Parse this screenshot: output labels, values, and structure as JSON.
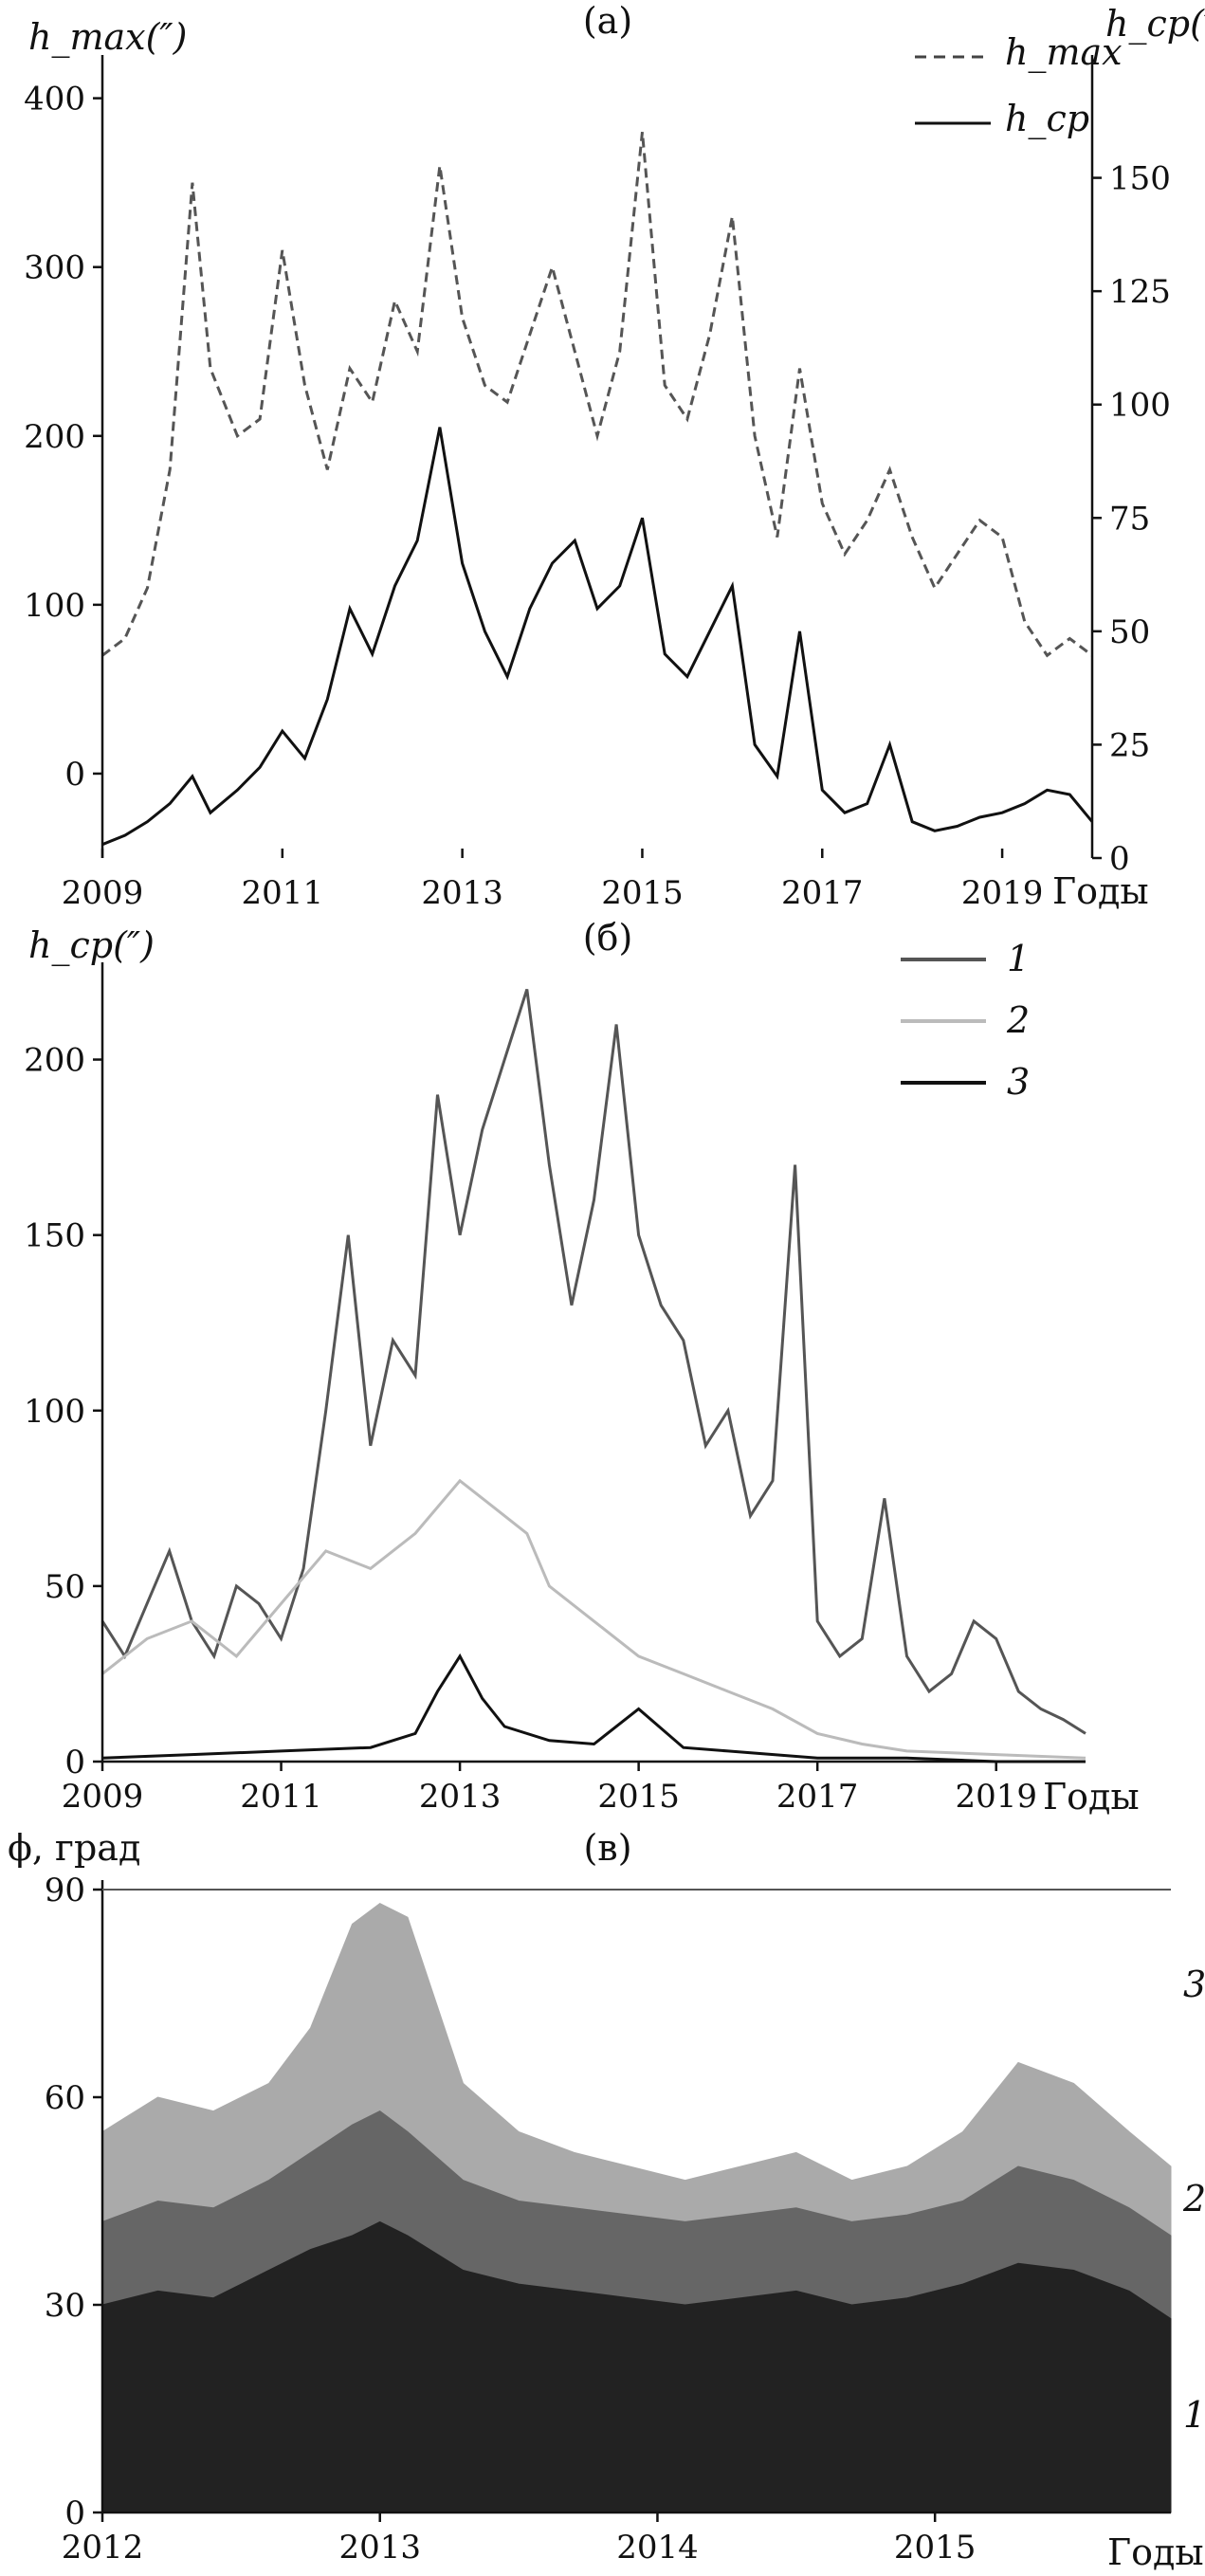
{
  "figure": {
    "panels": [
      {
        "id": "a",
        "label": "(a)",
        "chart_data": {
          "type": "line",
          "ylabel_left": "h_max(″)",
          "ylabel_right": "h_cp(″)",
          "xlabel": "Годы",
          "x_ticks": [
            "2009",
            "2011",
            "2013",
            "2015",
            "2017",
            "2019"
          ],
          "xlim": [
            2009,
            2020
          ],
          "y_left_ticks": [
            "0",
            "100",
            "200",
            "300",
            "400"
          ],
          "y_left_lim": [
            -50,
            420
          ],
          "y_right_ticks": [
            "0",
            "25",
            "50",
            "75",
            "100",
            "125",
            "150"
          ],
          "y_right_lim": [
            0,
            175
          ],
          "legend": [
            {
              "name": "h_max",
              "style": "dashed"
            },
            {
              "name": "h_cp",
              "style": "solid"
            }
          ],
          "legend_position": "top-right",
          "series": [
            {
              "name": "h_max",
              "axis": "left",
              "color": "#555555",
              "x": [
                2009.0,
                2009.25,
                2009.5,
                2009.75,
                2010.0,
                2010.2,
                2010.5,
                2010.75,
                2011.0,
                2011.25,
                2011.5,
                2011.75,
                2012.0,
                2012.25,
                2012.5,
                2012.75,
                2013.0,
                2013.25,
                2013.5,
                2013.75,
                2014.0,
                2014.25,
                2014.5,
                2014.75,
                2015.0,
                2015.25,
                2015.5,
                2015.75,
                2016.0,
                2016.25,
                2016.5,
                2016.75,
                2017.0,
                2017.25,
                2017.5,
                2017.75,
                2018.0,
                2018.25,
                2018.5,
                2018.75,
                2019.0,
                2019.25,
                2019.5,
                2019.75,
                2020.0
              ],
              "y": [
                70,
                80,
                110,
                180,
                350,
                240,
                200,
                210,
                310,
                230,
                180,
                240,
                220,
                280,
                250,
                360,
                270,
                230,
                220,
                260,
                300,
                250,
                200,
                250,
                380,
                230,
                210,
                260,
                330,
                200,
                140,
                240,
                160,
                130,
                150,
                180,
                140,
                110,
                130,
                150,
                140,
                90,
                70,
                80,
                70
              ]
            },
            {
              "name": "h_cp",
              "axis": "right",
              "color": "#111111",
              "x": [
                2009.0,
                2009.25,
                2009.5,
                2009.75,
                2010.0,
                2010.2,
                2010.5,
                2010.75,
                2011.0,
                2011.25,
                2011.5,
                2011.75,
                2012.0,
                2012.25,
                2012.5,
                2012.75,
                2013.0,
                2013.25,
                2013.5,
                2013.75,
                2014.0,
                2014.25,
                2014.5,
                2014.75,
                2015.0,
                2015.25,
                2015.5,
                2015.75,
                2016.0,
                2016.25,
                2016.5,
                2016.75,
                2017.0,
                2017.25,
                2017.5,
                2017.75,
                2018.0,
                2018.25,
                2018.5,
                2018.75,
                2019.0,
                2019.25,
                2019.5,
                2019.75,
                2020.0
              ],
              "y": [
                3,
                5,
                8,
                12,
                18,
                10,
                15,
                20,
                28,
                22,
                35,
                55,
                45,
                60,
                70,
                95,
                65,
                50,
                40,
                55,
                65,
                70,
                55,
                60,
                75,
                45,
                40,
                50,
                60,
                25,
                18,
                50,
                15,
                10,
                12,
                25,
                8,
                6,
                7,
                9,
                10,
                12,
                15,
                14,
                8
              ]
            }
          ]
        }
      },
      {
        "id": "b",
        "label": "(б)",
        "chart_data": {
          "type": "line",
          "ylabel": "h_cp(″)",
          "xlabel": "Годы",
          "x_ticks": [
            "2009",
            "2011",
            "2013",
            "2015",
            "2017",
            "2019"
          ],
          "xlim": [
            2009,
            2020
          ],
          "y_ticks": [
            "0",
            "50",
            "100",
            "150",
            "200"
          ],
          "ylim": [
            0,
            225
          ],
          "legend": [
            {
              "name": "1",
              "color": "#555555"
            },
            {
              "name": "2",
              "color": "#bbbbbb"
            },
            {
              "name": "3",
              "color": "#111111"
            }
          ],
          "legend_position": "top-right",
          "series": [
            {
              "name": "1",
              "color": "#555555",
              "x": [
                2009.0,
                2009.25,
                2009.5,
                2009.75,
                2010.0,
                2010.25,
                2010.5,
                2010.75,
                2011.0,
                2011.25,
                2011.5,
                2011.75,
                2012.0,
                2012.25,
                2012.5,
                2012.75,
                2013.0,
                2013.25,
                2013.5,
                2013.75,
                2014.0,
                2014.25,
                2014.5,
                2014.75,
                2015.0,
                2015.25,
                2015.5,
                2015.75,
                2016.0,
                2016.25,
                2016.5,
                2016.75,
                2017.0,
                2017.25,
                2017.5,
                2017.75,
                2018.0,
                2018.25,
                2018.5,
                2018.75,
                2019.0,
                2019.25,
                2019.5,
                2019.75,
                2020.0
              ],
              "y": [
                40,
                30,
                45,
                60,
                40,
                30,
                50,
                45,
                35,
                55,
                100,
                150,
                90,
                120,
                110,
                190,
                150,
                180,
                200,
                220,
                170,
                130,
                160,
                210,
                150,
                130,
                120,
                90,
                100,
                70,
                80,
                170,
                40,
                30,
                35,
                75,
                30,
                20,
                25,
                40,
                35,
                20,
                15,
                12,
                8
              ]
            },
            {
              "name": "2",
              "color": "#bbbbbb",
              "x": [
                2009.0,
                2009.5,
                2010.0,
                2010.5,
                2011.0,
                2011.5,
                2012.0,
                2012.5,
                2013.0,
                2013.25,
                2013.5,
                2013.75,
                2014.0,
                2014.5,
                2015.0,
                2015.5,
                2016.0,
                2016.5,
                2017.0,
                2017.5,
                2018.0,
                2019.0,
                2020.0
              ],
              "y": [
                25,
                35,
                40,
                30,
                45,
                60,
                55,
                65,
                80,
                75,
                70,
                65,
                50,
                40,
                30,
                25,
                20,
                15,
                8,
                5,
                3,
                2,
                1
              ]
            },
            {
              "name": "3",
              "color": "#111111",
              "x": [
                2009.0,
                2010.0,
                2011.0,
                2012.0,
                2012.5,
                2012.75,
                2013.0,
                2013.25,
                2013.5,
                2014.0,
                2014.5,
                2015.0,
                2015.5,
                2016.0,
                2017.0,
                2018.0,
                2019.0,
                2020.0
              ],
              "y": [
                1,
                2,
                3,
                4,
                8,
                20,
                30,
                18,
                10,
                6,
                5,
                15,
                4,
                3,
                1,
                1,
                0,
                0
              ]
            }
          ]
        }
      },
      {
        "id": "c",
        "label": "(в)",
        "chart_data": {
          "type": "area",
          "ylabel": "ϕ, град",
          "xlabel": "Годы",
          "x_ticks": [
            "2012",
            "2013",
            "2014",
            "2015"
          ],
          "xlim": [
            2012,
            2015.85
          ],
          "y_ticks": [
            "0",
            "30",
            "60",
            "90"
          ],
          "ylim": [
            0,
            90
          ],
          "band_labels": [
            "1",
            "2",
            "3"
          ],
          "series": [
            {
              "name": "3",
              "color": "#aaaaaa",
              "x": [
                2012.0,
                2012.2,
                2012.4,
                2012.6,
                2012.75,
                2012.9,
                2013.0,
                2013.1,
                2013.3,
                2013.5,
                2013.7,
                2013.9,
                2014.1,
                2014.3,
                2014.5,
                2014.7,
                2014.9,
                2015.1,
                2015.3,
                2015.5,
                2015.7,
                2015.85
              ],
              "y": [
                55,
                60,
                58,
                62,
                70,
                85,
                88,
                86,
                62,
                55,
                52,
                50,
                48,
                50,
                52,
                48,
                50,
                55,
                65,
                62,
                55,
                50
              ]
            },
            {
              "name": "2",
              "color": "#666666",
              "x": [
                2012.0,
                2012.2,
                2012.4,
                2012.6,
                2012.75,
                2012.9,
                2013.0,
                2013.1,
                2013.3,
                2013.5,
                2013.7,
                2013.9,
                2014.1,
                2014.3,
                2014.5,
                2014.7,
                2014.9,
                2015.1,
                2015.3,
                2015.5,
                2015.7,
                2015.85
              ],
              "y": [
                42,
                45,
                44,
                48,
                52,
                56,
                58,
                55,
                48,
                45,
                44,
                43,
                42,
                43,
                44,
                42,
                43,
                45,
                50,
                48,
                44,
                40
              ]
            },
            {
              "name": "1",
              "color": "#222222",
              "x": [
                2012.0,
                2012.2,
                2012.4,
                2012.6,
                2012.75,
                2012.9,
                2013.0,
                2013.1,
                2013.3,
                2013.5,
                2013.7,
                2013.9,
                2014.1,
                2014.3,
                2014.5,
                2014.7,
                2014.9,
                2015.1,
                2015.3,
                2015.5,
                2015.7,
                2015.85
              ],
              "y": [
                30,
                32,
                31,
                35,
                38,
                40,
                42,
                40,
                35,
                33,
                32,
                31,
                30,
                31,
                32,
                30,
                31,
                33,
                36,
                35,
                32,
                28
              ]
            }
          ]
        }
      }
    ]
  }
}
